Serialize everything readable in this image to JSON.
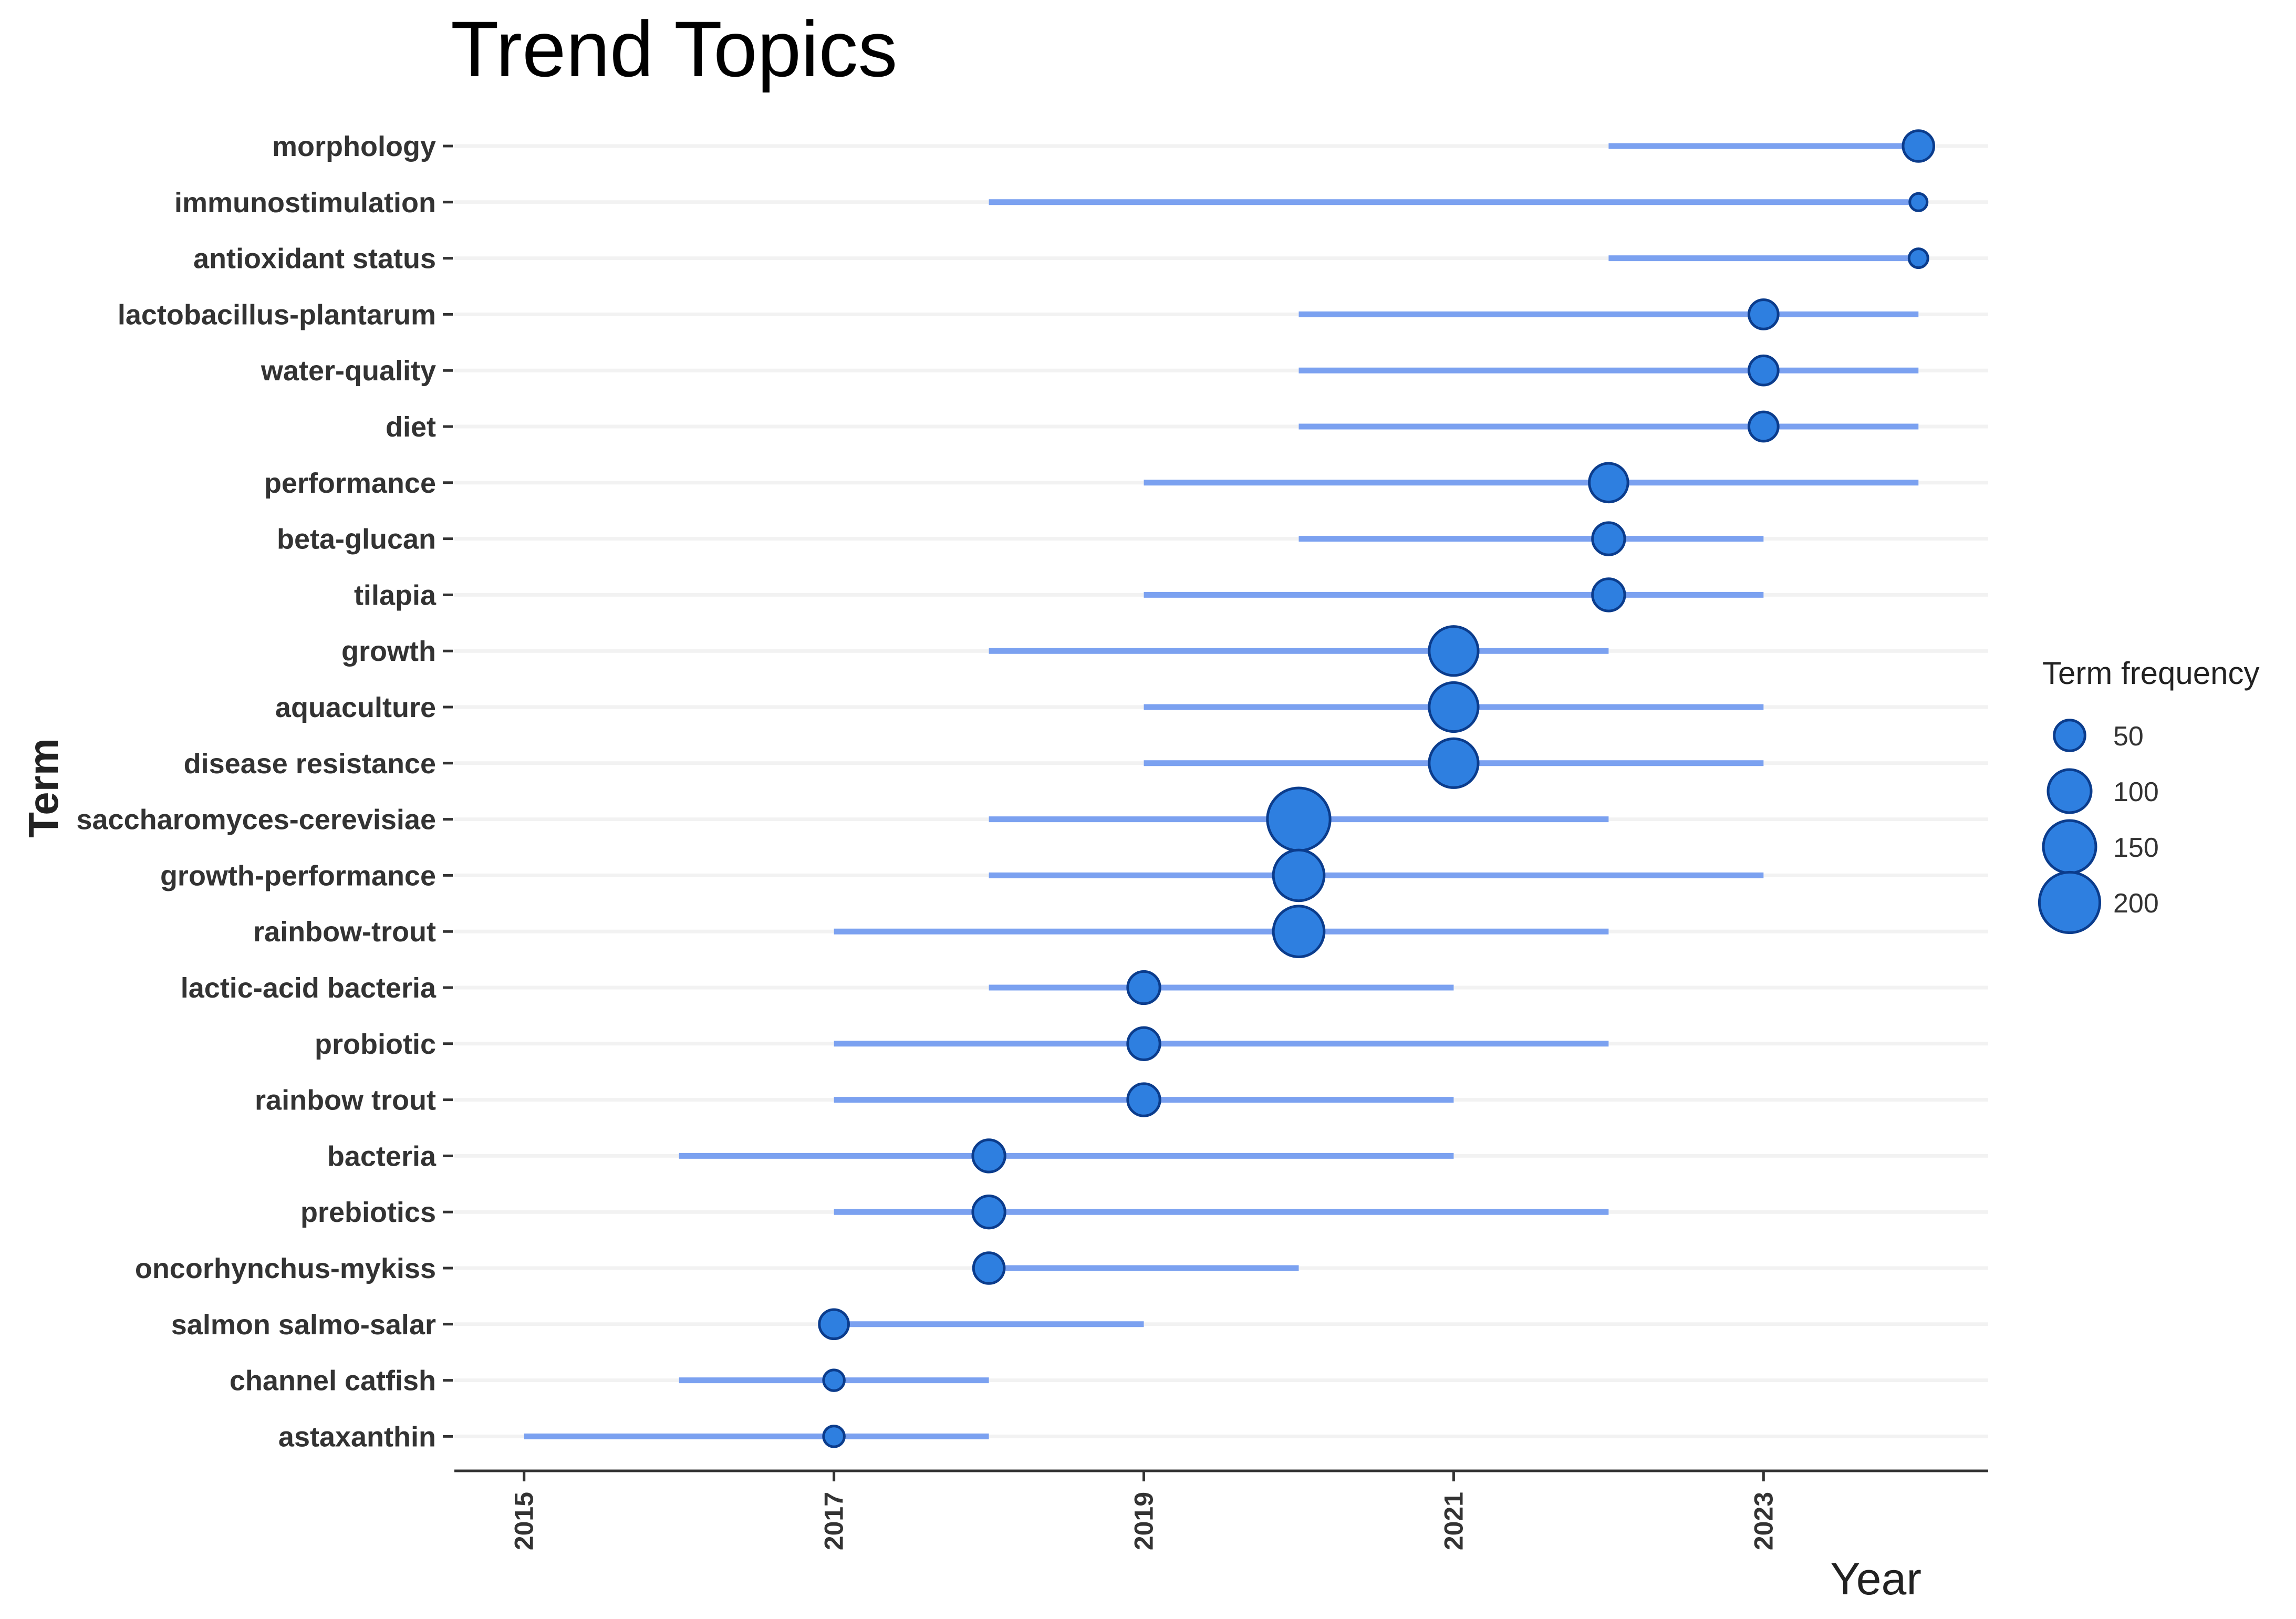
{
  "chart_data": {
    "type": "scatter",
    "title": "Trend Topics",
    "xlabel": "Year",
    "ylabel": "Term",
    "xlim": [
      2014.55,
      2024.45
    ],
    "x_ticks": [
      2015,
      2017,
      2019,
      2021,
      2023
    ],
    "grid": "horizontal-only",
    "legend_placement": "right",
    "colors": {
      "point": "#2e7fe0",
      "point_stroke": "#0b3c8c",
      "segment": "#7ba1f0",
      "grid": "#f2f2f2",
      "axis": "#333333"
    },
    "legend": {
      "title": "Term frequency",
      "sizes": [
        50,
        100,
        150,
        200
      ]
    },
    "series": [
      {
        "term": "morphology",
        "start": 2022,
        "end": 2024,
        "median": 2024,
        "freq": 50
      },
      {
        "term": "immunostimulation",
        "start": 2018,
        "end": 2024,
        "median": 2024,
        "freq": 15
      },
      {
        "term": "antioxidant status",
        "start": 2022,
        "end": 2024,
        "median": 2024,
        "freq": 18
      },
      {
        "term": "lactobacillus-plantarum",
        "start": 2020,
        "end": 2024,
        "median": 2023,
        "freq": 45
      },
      {
        "term": "water-quality",
        "start": 2020,
        "end": 2024,
        "median": 2023,
        "freq": 45
      },
      {
        "term": "diet",
        "start": 2020,
        "end": 2024,
        "median": 2023,
        "freq": 45
      },
      {
        "term": "performance",
        "start": 2019,
        "end": 2024,
        "median": 2022,
        "freq": 80
      },
      {
        "term": "beta-glucan",
        "start": 2020,
        "end": 2023,
        "median": 2022,
        "freq": 55
      },
      {
        "term": "tilapia",
        "start": 2019,
        "end": 2023,
        "median": 2022,
        "freq": 55
      },
      {
        "term": "growth",
        "start": 2018,
        "end": 2022,
        "median": 2021,
        "freq": 130
      },
      {
        "term": "aquaculture",
        "start": 2019,
        "end": 2023,
        "median": 2021,
        "freq": 130
      },
      {
        "term": "disease resistance",
        "start": 2019,
        "end": 2023,
        "median": 2021,
        "freq": 130
      },
      {
        "term": "saccharomyces-cerevisiae",
        "start": 2018,
        "end": 2022,
        "median": 2020,
        "freq": 215
      },
      {
        "term": "growth-performance",
        "start": 2018,
        "end": 2023,
        "median": 2020,
        "freq": 140
      },
      {
        "term": "rainbow-trout",
        "start": 2017,
        "end": 2022,
        "median": 2020,
        "freq": 140
      },
      {
        "term": "lactic-acid bacteria",
        "start": 2018,
        "end": 2021,
        "median": 2019,
        "freq": 55
      },
      {
        "term": "probiotic",
        "start": 2017,
        "end": 2022,
        "median": 2019,
        "freq": 55
      },
      {
        "term": "rainbow trout",
        "start": 2017,
        "end": 2021,
        "median": 2019,
        "freq": 55
      },
      {
        "term": "bacteria",
        "start": 2016,
        "end": 2021,
        "median": 2018,
        "freq": 55
      },
      {
        "term": "prebiotics",
        "start": 2017,
        "end": 2022,
        "median": 2018,
        "freq": 55
      },
      {
        "term": "oncorhynchus-mykiss",
        "start": 2018,
        "end": 2020,
        "median": 2018,
        "freq": 50
      },
      {
        "term": "salmon salmo-salar",
        "start": 2017,
        "end": 2019,
        "median": 2017,
        "freq": 45
      },
      {
        "term": "channel catfish",
        "start": 2016,
        "end": 2018,
        "median": 2017,
        "freq": 22
      },
      {
        "term": "astaxanthin",
        "start": 2015,
        "end": 2018,
        "median": 2017,
        "freq": 22
      }
    ]
  }
}
